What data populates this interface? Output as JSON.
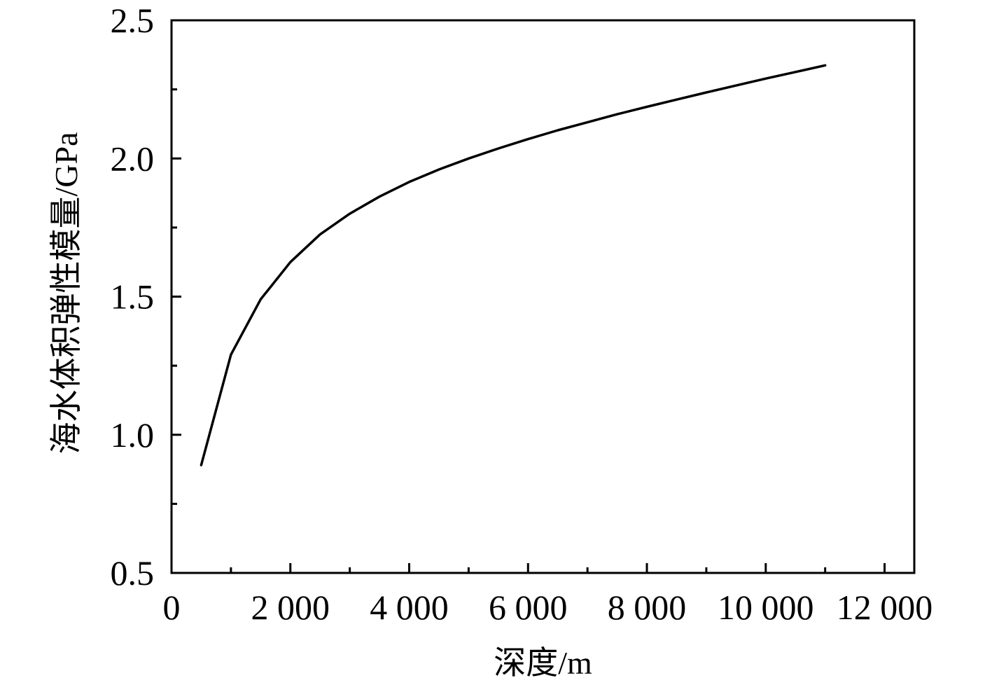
{
  "chart_data": {
    "type": "line",
    "title": "",
    "xlabel": "深度/m",
    "ylabel": "海水体积弹性模量/GPa",
    "xlim": [
      0,
      12500
    ],
    "ylim": [
      0.5,
      2.5
    ],
    "x_ticks": [
      0,
      2000,
      4000,
      6000,
      8000,
      10000,
      12000
    ],
    "x_tick_labels": [
      "0",
      "2 000",
      "4 000",
      "6 000",
      "8 000",
      "10 000",
      "12 000"
    ],
    "y_ticks": [
      0.5,
      1.0,
      1.5,
      2.0,
      2.5
    ],
    "y_tick_labels": [
      "0.5",
      "1.0",
      "1.5",
      "2.0",
      "2.5"
    ],
    "grid": false,
    "legend": "none",
    "series": [
      {
        "color": "#000000",
        "x": [
          500,
          1000,
          1500,
          2000,
          2500,
          3000,
          3500,
          4000,
          4500,
          5000,
          5500,
          6000,
          6500,
          7000,
          7500,
          8000,
          8500,
          9000,
          9500,
          10000,
          10500,
          11000
        ],
        "y": [
          0.89,
          1.29,
          1.49,
          1.625,
          1.725,
          1.8,
          1.862,
          1.915,
          1.96,
          2.0,
          2.036,
          2.07,
          2.102,
          2.131,
          2.16,
          2.187,
          2.213,
          2.239,
          2.264,
          2.289,
          2.313,
          2.337
        ]
      }
    ]
  }
}
